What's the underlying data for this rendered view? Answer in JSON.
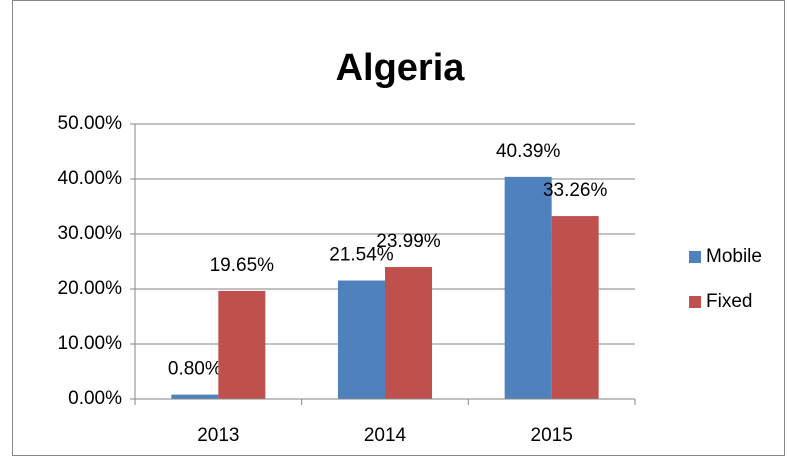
{
  "chart_data": {
    "type": "bar",
    "title": "Algeria",
    "categories": [
      "2013",
      "2014",
      "2015"
    ],
    "series": [
      {
        "name": "Mobile",
        "color": "#4f81bd",
        "values": [
          0.8,
          21.54,
          40.39
        ],
        "value_labels": [
          "0.80%",
          "21.54%",
          "40.39%"
        ]
      },
      {
        "name": "Fixed",
        "color": "#c0504d",
        "values": [
          19.65,
          23.99,
          33.26
        ],
        "value_labels": [
          "19.65%",
          "23.99%",
          "33.26%"
        ]
      }
    ],
    "ylim": [
      0,
      50
    ],
    "yticks": [
      {
        "value": 0,
        "label": "0.00%"
      },
      {
        "value": 10,
        "label": "10.00%"
      },
      {
        "value": 20,
        "label": "20.00%"
      },
      {
        "value": 30,
        "label": "30.00%"
      },
      {
        "value": 40,
        "label": "40.00%"
      },
      {
        "value": 50,
        "label": "50.00%"
      }
    ],
    "grid": true,
    "legend": "right"
  }
}
